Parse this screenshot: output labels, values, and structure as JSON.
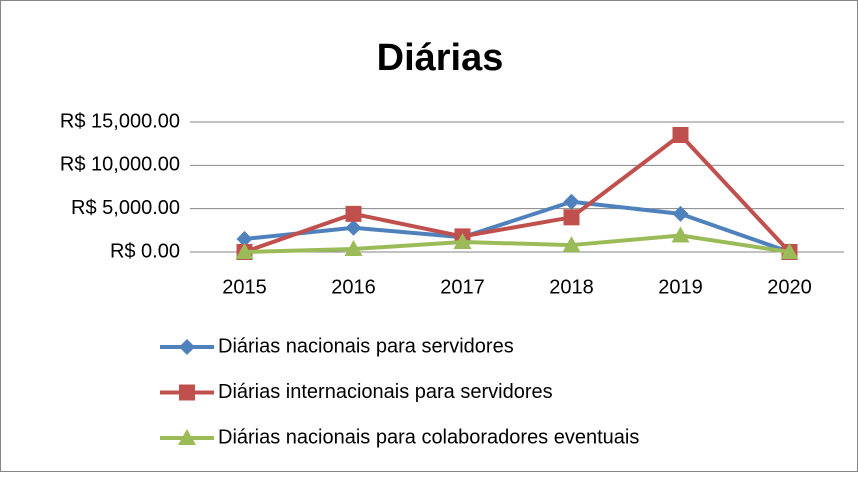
{
  "chart_data": {
    "type": "line",
    "title": "Diárias",
    "categories": [
      "2015",
      "2016",
      "2017",
      "2018",
      "2019",
      "2020"
    ],
    "series": [
      {
        "name": "Diárias nacionais para servidores",
        "color": "#4f81bd",
        "marker": "diamond",
        "values": [
          1500,
          2800,
          1700,
          5800,
          4400,
          0
        ]
      },
      {
        "name": "Diárias internacionais para servidores",
        "color": "#c0504d",
        "marker": "square",
        "values": [
          0,
          4400,
          1800,
          4000,
          13500,
          0
        ]
      },
      {
        "name": "Diárias nacionais para colaboradores eventuais",
        "color": "#9bbb59",
        "marker": "triangle",
        "values": [
          0,
          350,
          1150,
          800,
          1900,
          0
        ]
      }
    ],
    "ylim": [
      0,
      15000
    ],
    "yticks": [
      {
        "value": 0,
        "label": "R$ 0.00"
      },
      {
        "value": 5000,
        "label": "R$ 5,000.00"
      },
      {
        "value": 10000,
        "label": "R$ 10,000.00"
      },
      {
        "value": 15000,
        "label": "R$ 15,000.00"
      }
    ],
    "grid": true,
    "legend": "bottom"
  }
}
